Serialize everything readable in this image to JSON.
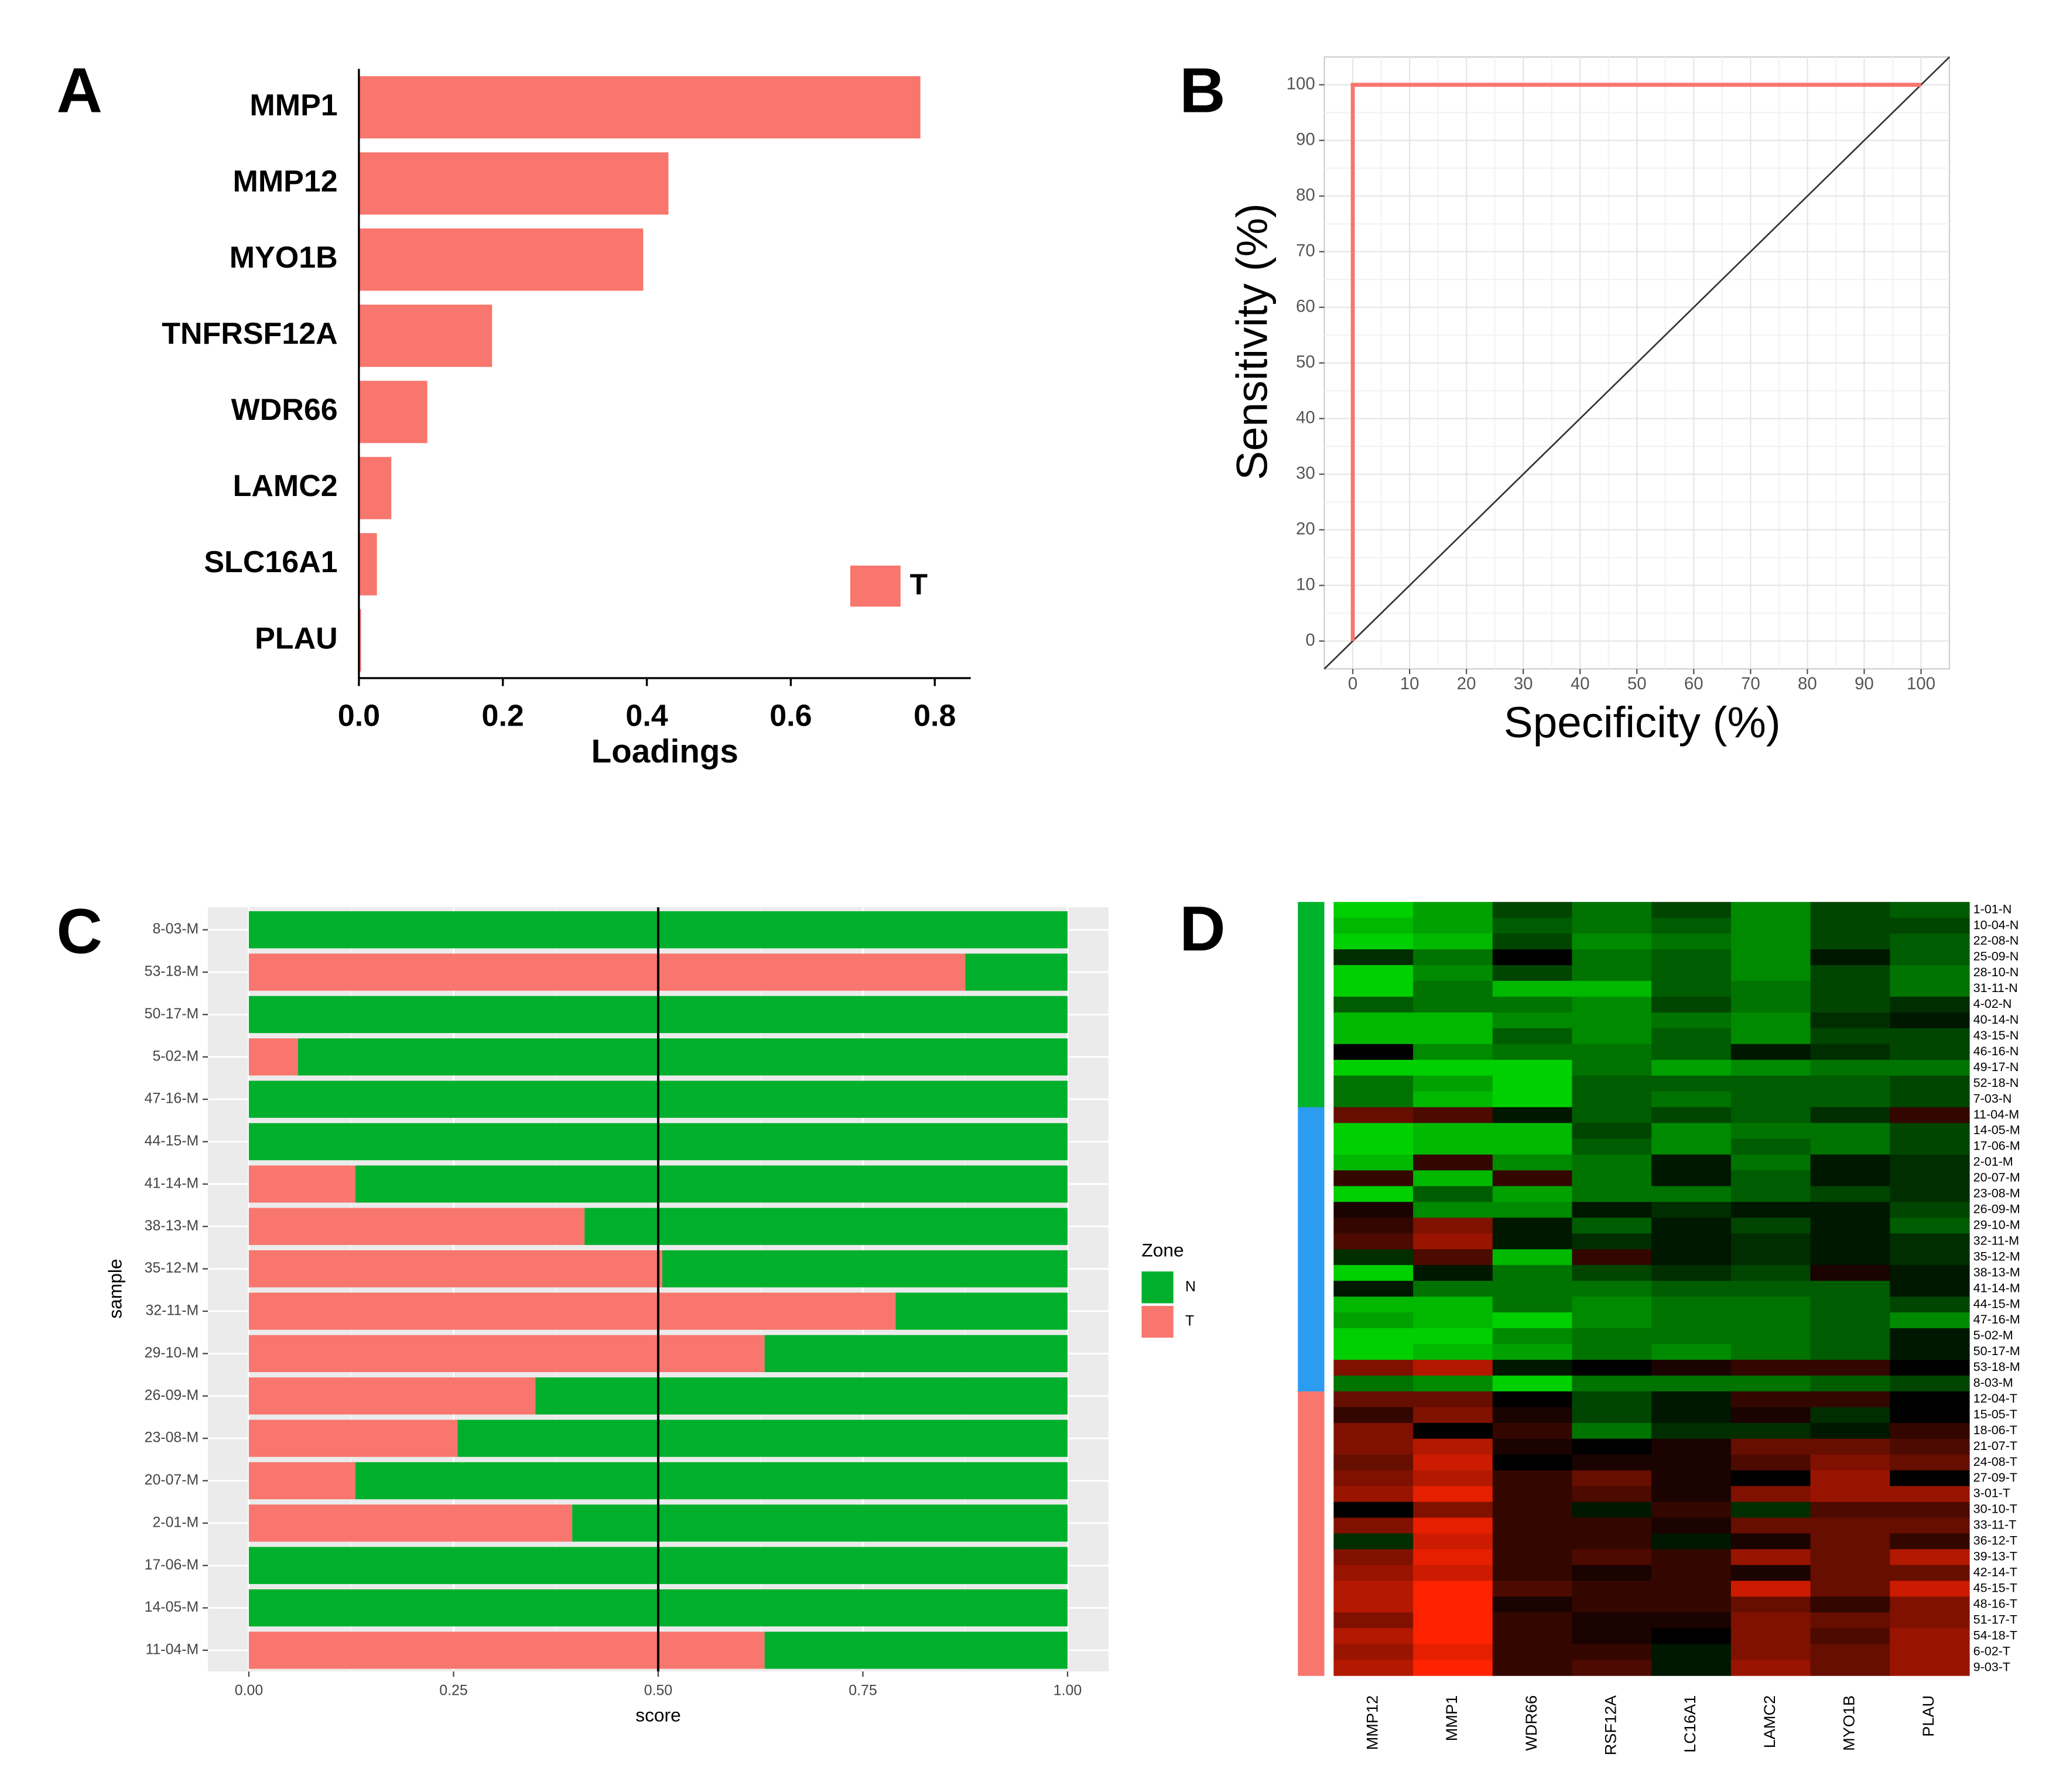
{
  "chart_data": [
    {
      "panel": "A",
      "type": "hbar",
      "categories": [
        "MMP1",
        "MMP12",
        "MYO1B",
        "TNFRSF12A",
        "WDR66",
        "LAMC2",
        "SLC16A1",
        "PLAU"
      ],
      "series": [
        {
          "name": "T",
          "color": "#f8766d",
          "values": [
            0.78,
            0.43,
            0.395,
            0.185,
            0.095,
            0.045,
            0.025,
            0.003
          ]
        }
      ],
      "xlabel": "Loadings",
      "xlim": [
        0,
        0.85
      ],
      "xticks": [
        {
          "value": 0,
          "label": "0.0"
        },
        {
          "value": 0.2,
          "label": "0.2"
        },
        {
          "value": 0.4,
          "label": "0.4"
        },
        {
          "value": 0.6,
          "label": "0.6"
        },
        {
          "value": 0.8,
          "label": "0.8"
        }
      ],
      "legend": "bottom-right"
    },
    {
      "panel": "B",
      "type": "line",
      "x": [
        0,
        0,
        100
      ],
      "values": [
        0,
        100,
        100
      ],
      "color": "#f8766d",
      "xlabel": "Specificity (%)",
      "ylabel": "Sensitivity (%)",
      "xlim": [
        -5,
        105
      ],
      "ylim": [
        -5,
        105
      ],
      "xticks": [
        0,
        10,
        20,
        30,
        40,
        50,
        60,
        70,
        80,
        90,
        100
      ],
      "yticks": [
        0,
        10,
        20,
        30,
        40,
        50,
        60,
        70,
        80,
        90,
        100
      ],
      "grid": true
    },
    {
      "panel": "C",
      "type": "stacked_hbar",
      "categories": [
        "8-03-M",
        "53-18-M",
        "50-17-M",
        "5-02-M",
        "47-16-M",
        "44-15-M",
        "41-14-M",
        "38-13-M",
        "35-12-M",
        "32-11-M",
        "29-10-M",
        "26-09-M",
        "23-08-M",
        "20-07-M",
        "2-01-M",
        "17-06-M",
        "14-05-M",
        "11-04-M"
      ],
      "series": [
        {
          "name": "N",
          "color": "#00b02c",
          "values": [
            1,
            0.125,
            1,
            0.94,
            1,
            1,
            0.87,
            0.59,
            0.495,
            0.21,
            0.37,
            0.65,
            0.745,
            0.87,
            0.605,
            1,
            1,
            0.37
          ]
        },
        {
          "name": "T",
          "color": "#f8766d",
          "values": [
            0,
            0.875,
            0,
            0.06,
            0,
            0,
            0.13,
            0.41,
            0.505,
            0.79,
            0.63,
            0.35,
            0.255,
            0.13,
            0.395,
            0,
            0,
            0.63
          ]
        }
      ],
      "xlabel": "score",
      "ylabel": "sample",
      "legend_title": "Zone",
      "xlim": [
        -0.05,
        1.05
      ],
      "xticks": [
        {
          "value": 0,
          "label": "0.00"
        },
        {
          "value": 0.25,
          "label": "0.25"
        },
        {
          "value": 0.5,
          "label": "0.50"
        },
        {
          "value": 0.75,
          "label": "0.75"
        },
        {
          "value": 1,
          "label": "1.00"
        }
      ],
      "vline": 0.5,
      "grid": true,
      "legend": "right"
    },
    {
      "panel": "D",
      "type": "heatmap",
      "columns": [
        "MMP12",
        "MMP1",
        "WDR66",
        "RSF12A",
        "LC16A1",
        "LAMC2",
        "MYO1B",
        "PLAU"
      ],
      "rows": [
        "1-01-N",
        "10-04-N",
        "22-08-N",
        "25-09-N",
        "28-10-N",
        "31-11-N",
        "4-02-N",
        "40-14-N",
        "43-15-N",
        "46-16-N",
        "49-17-N",
        "52-18-N",
        "7-03-N",
        "11-04-M",
        "14-05-M",
        "17-06-M",
        "2-01-M",
        "20-07-M",
        "23-08-M",
        "26-09-M",
        "29-10-M",
        "32-11-M",
        "35-12-M",
        "38-13-M",
        "41-14-M",
        "44-15-M",
        "47-16-M",
        "5-02-M",
        "50-17-M",
        "53-18-M",
        "8-03-M",
        "12-04-T",
        "15-05-T",
        "18-06-T",
        "21-07-T",
        "24-08-T",
        "27-09-T",
        "3-01-T",
        "30-10-T",
        "33-11-T",
        "36-12-T",
        "39-13-T",
        "42-14-T",
        "45-15-T",
        "48-16-T",
        "51-17-T",
        "54-18-T",
        "6-02-T",
        "9-03-T"
      ],
      "values": [
        [
          -0.9,
          -0.7,
          -0.3,
          -0.5,
          -0.3,
          -0.6,
          -0.3,
          -0.4
        ],
        [
          -0.8,
          -0.7,
          -0.4,
          -0.5,
          -0.4,
          -0.6,
          -0.3,
          -0.3
        ],
        [
          -0.9,
          -0.8,
          -0.3,
          -0.6,
          -0.5,
          -0.6,
          -0.3,
          -0.4
        ],
        [
          -0.2,
          -0.5,
          0,
          -0.5,
          -0.4,
          -0.6,
          -0.1,
          -0.4
        ],
        [
          -0.9,
          -0.6,
          -0.3,
          -0.5,
          -0.4,
          -0.6,
          -0.3,
          -0.5
        ],
        [
          -0.9,
          -0.5,
          -0.8,
          -0.8,
          -0.4,
          -0.5,
          -0.3,
          -0.5
        ],
        [
          -0.4,
          -0.5,
          -0.5,
          -0.6,
          -0.3,
          -0.5,
          -0.3,
          -0.2
        ],
        [
          -0.8,
          -0.8,
          -0.6,
          -0.6,
          -0.5,
          -0.6,
          -0.2,
          -0.1
        ],
        [
          -0.8,
          -0.8,
          -0.4,
          -0.6,
          -0.4,
          -0.6,
          -0.3,
          -0.3
        ],
        [
          0,
          -0.6,
          -0.5,
          -0.5,
          -0.4,
          -0.1,
          -0.2,
          -0.3
        ],
        [
          -0.9,
          -0.9,
          -0.9,
          -0.5,
          -0.7,
          -0.6,
          -0.5,
          -0.5
        ],
        [
          -0.5,
          -0.7,
          -0.9,
          -0.4,
          -0.4,
          -0.4,
          -0.4,
          -0.3
        ],
        [
          -0.5,
          -0.8,
          -0.9,
          -0.4,
          -0.5,
          -0.4,
          -0.4,
          -0.3
        ],
        [
          0.4,
          0.3,
          -0.1,
          -0.4,
          -0.3,
          -0.4,
          -0.2,
          0.2
        ],
        [
          -0.9,
          -0.8,
          -0.8,
          -0.3,
          -0.6,
          -0.5,
          -0.5,
          -0.3
        ],
        [
          -0.9,
          -0.8,
          -0.8,
          -0.4,
          -0.6,
          -0.4,
          -0.5,
          -0.3
        ],
        [
          -0.8,
          0.2,
          -0.6,
          -0.5,
          -0.1,
          -0.5,
          -0.1,
          -0.2
        ],
        [
          0.2,
          -0.8,
          0.2,
          -0.5,
          -0.1,
          -0.4,
          -0.1,
          -0.2
        ],
        [
          -0.9,
          -0.4,
          -0.7,
          -0.5,
          -0.5,
          -0.4,
          -0.3,
          -0.2
        ],
        [
          0.1,
          -0.6,
          -0.6,
          -0.1,
          -0.2,
          -0.1,
          -0.1,
          -0.3
        ],
        [
          0.2,
          0.5,
          -0.1,
          -0.4,
          -0.1,
          -0.3,
          -0.1,
          -0.4
        ],
        [
          0.3,
          0.6,
          -0.1,
          -0.2,
          -0.1,
          -0.2,
          -0.1,
          -0.2
        ],
        [
          -0.2,
          0.3,
          -0.8,
          0.2,
          -0.1,
          -0.2,
          -0.1,
          -0.2
        ],
        [
          -0.9,
          -0.1,
          -0.5,
          -0.3,
          -0.2,
          -0.3,
          0.1,
          -0.1
        ],
        [
          -0.1,
          -0.5,
          -0.5,
          -0.5,
          -0.4,
          -0.4,
          -0.4,
          -0.1
        ],
        [
          -0.8,
          -0.8,
          -0.5,
          -0.6,
          -0.5,
          -0.5,
          -0.4,
          -0.3
        ],
        [
          -0.7,
          -0.8,
          -0.9,
          -0.6,
          -0.5,
          -0.5,
          -0.4,
          -0.6
        ],
        [
          -0.9,
          -0.9,
          -0.6,
          -0.5,
          -0.5,
          -0.5,
          -0.4,
          -0.1
        ],
        [
          -0.9,
          -0.8,
          -0.7,
          -0.5,
          -0.6,
          -0.5,
          -0.4,
          -0.1
        ],
        [
          0.5,
          0.7,
          -0.1,
          0,
          0.1,
          0.2,
          0.2,
          0
        ],
        [
          -0.5,
          -0.6,
          -0.9,
          -0.5,
          -0.5,
          -0.5,
          -0.4,
          -0.3
        ],
        [
          0.4,
          0.4,
          0,
          -0.3,
          -0.1,
          0.2,
          0.2,
          0
        ],
        [
          0.2,
          0.5,
          0.1,
          -0.3,
          -0.1,
          0.1,
          -0.2,
          0
        ],
        [
          0.5,
          0,
          0.2,
          -0.5,
          -0.2,
          -0.2,
          -0.1,
          0.2
        ],
        [
          0.5,
          0.7,
          0.1,
          0,
          0.1,
          0.4,
          0.4,
          0.3
        ],
        [
          0.4,
          0.8,
          0,
          0.1,
          0.1,
          0.3,
          0.5,
          0.4
        ],
        [
          0.5,
          0.7,
          0.2,
          0.4,
          0.1,
          0,
          0.6,
          0
        ],
        [
          0.6,
          0.9,
          0.2,
          0.3,
          0.1,
          0.5,
          0.6,
          0.6
        ],
        [
          0,
          0.5,
          0.2,
          -0.1,
          0.2,
          -0.2,
          0.3,
          0.3
        ],
        [
          0.5,
          0.9,
          0.2,
          0.2,
          0.1,
          0.4,
          0.4,
          0.4
        ],
        [
          -0.2,
          0.8,
          0.2,
          0.2,
          -0.1,
          0.1,
          0.4,
          0.2
        ],
        [
          0.5,
          0.9,
          0.2,
          0.3,
          0.2,
          0.6,
          0.4,
          0.7
        ],
        [
          0.6,
          0.8,
          0.2,
          0.1,
          0.2,
          0.1,
          0.4,
          0.4
        ],
        [
          0.7,
          1,
          0.3,
          0.2,
          0.2,
          0.8,
          0.4,
          0.8
        ],
        [
          0.7,
          1,
          0.1,
          0.2,
          0.2,
          0.4,
          0.2,
          0.5
        ],
        [
          0.5,
          1,
          0.2,
          0.1,
          0.1,
          0.5,
          0.4,
          0.5
        ],
        [
          0.7,
          1,
          0.2,
          0.1,
          0,
          0.5,
          0.3,
          0.6
        ],
        [
          0.6,
          0.9,
          0.2,
          0.2,
          -0.1,
          0.5,
          0.4,
          0.6
        ],
        [
          0.7,
          1,
          0.2,
          0.3,
          -0.1,
          0.6,
          0.4,
          0.6
        ]
      ],
      "vlim": [
        -1,
        1
      ],
      "colors": {
        "low": "#00e600",
        "mid": "#000000",
        "high": "#ff2200"
      },
      "group_colors": {
        "N": "#00b32c",
        "M": "#2b9cf2",
        "T": "#f8766d"
      }
    }
  ]
}
